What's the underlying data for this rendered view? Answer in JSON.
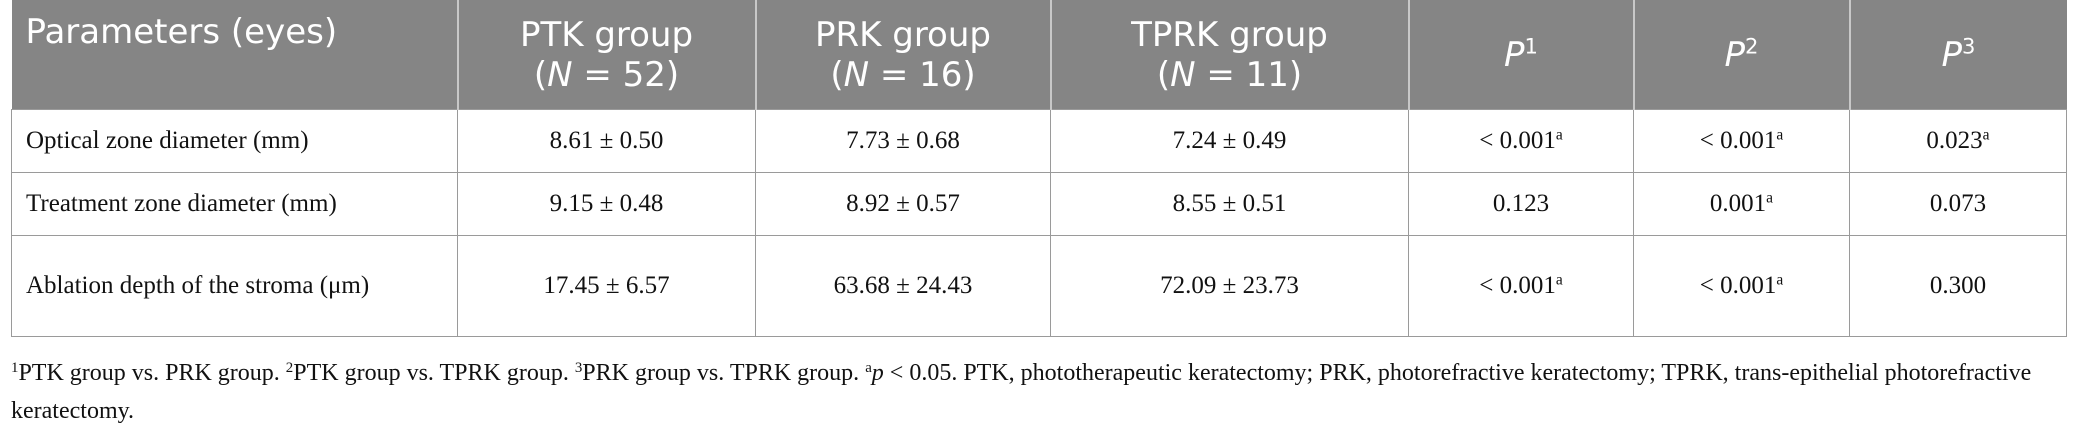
{
  "table": {
    "header": [
      {
        "lines": [
          [
            {
              "text": "Parameters (eyes)"
            }
          ]
        ]
      },
      {
        "lines": [
          [
            {
              "text": "PTK group"
            }
          ],
          [
            {
              "text": "("
            },
            {
              "text": "N",
              "style": "italic"
            },
            {
              "text": " = 52)"
            }
          ]
        ]
      },
      {
        "lines": [
          [
            {
              "text": "PRK group"
            }
          ],
          [
            {
              "text": "("
            },
            {
              "text": "N",
              "style": "italic"
            },
            {
              "text": " = 16)"
            }
          ]
        ]
      },
      {
        "lines": [
          [
            {
              "text": "TPRK group"
            }
          ],
          [
            {
              "text": "("
            },
            {
              "text": "N",
              "style": "italic"
            },
            {
              "text": " = 11)"
            }
          ]
        ]
      },
      {
        "lines": [
          [
            {
              "text": "P",
              "style": "italic"
            },
            {
              "text": "1",
              "style": "sup"
            }
          ]
        ]
      },
      {
        "lines": [
          [
            {
              "text": "P",
              "style": "italic"
            },
            {
              "text": "2",
              "style": "sup"
            }
          ]
        ]
      },
      {
        "lines": [
          [
            {
              "text": "P",
              "style": "italic"
            },
            {
              "text": "3",
              "style": "sup"
            }
          ]
        ]
      }
    ],
    "rows": [
      [
        [
          {
            "text": "Optical zone diameter (mm)"
          }
        ],
        [
          {
            "text": "8.61 ± 0.50"
          }
        ],
        [
          {
            "text": "7.73 ± 0.68"
          }
        ],
        [
          {
            "text": "7.24 ± 0.49"
          }
        ],
        [
          {
            "text": "< 0.001"
          },
          {
            "text": "a",
            "style": "sup"
          }
        ],
        [
          {
            "text": "< 0.001"
          },
          {
            "text": "a",
            "style": "sup"
          }
        ],
        [
          {
            "text": "0.023"
          },
          {
            "text": "a",
            "style": "sup"
          }
        ]
      ],
      [
        [
          {
            "text": "Treatment zone diameter (mm)"
          }
        ],
        [
          {
            "text": "9.15 ± 0.48"
          }
        ],
        [
          {
            "text": "8.92 ± 0.57"
          }
        ],
        [
          {
            "text": "8.55 ± 0.51"
          }
        ],
        [
          {
            "text": "0.123"
          }
        ],
        [
          {
            "text": "0.001"
          },
          {
            "text": "a",
            "style": "sup"
          }
        ],
        [
          {
            "text": "0.073"
          }
        ]
      ],
      [
        [
          {
            "text": "Ablation depth of the stroma (μm)"
          }
        ],
        [
          {
            "text": "17.45 ± 6.57"
          }
        ],
        [
          {
            "text": "63.68 ± 24.43"
          }
        ],
        [
          {
            "text": "72.09 ± 23.73"
          }
        ],
        [
          {
            "text": "< 0.001"
          },
          {
            "text": "a",
            "style": "sup"
          }
        ],
        [
          {
            "text": "< 0.001"
          },
          {
            "text": "a",
            "style": "sup"
          }
        ],
        [
          {
            "text": "0.300"
          }
        ]
      ]
    ]
  },
  "footnote": [
    {
      "text": "1",
      "style": "sup"
    },
    {
      "text": "PTK group vs. PRK group. "
    },
    {
      "text": "2",
      "style": "sup"
    },
    {
      "text": "PTK group vs. TPRK group. "
    },
    {
      "text": "3",
      "style": "sup"
    },
    {
      "text": "PRK group vs. TPRK group. "
    },
    {
      "text": "a",
      "style": "sup"
    },
    {
      "text": "p",
      "style": "italic"
    },
    {
      "text": " < 0.05. PTK, phototherapeutic keratectomy; PRK, photorefractive keratectomy; TPRK, trans-epithelial photorefractive keratectomy."
    }
  ]
}
